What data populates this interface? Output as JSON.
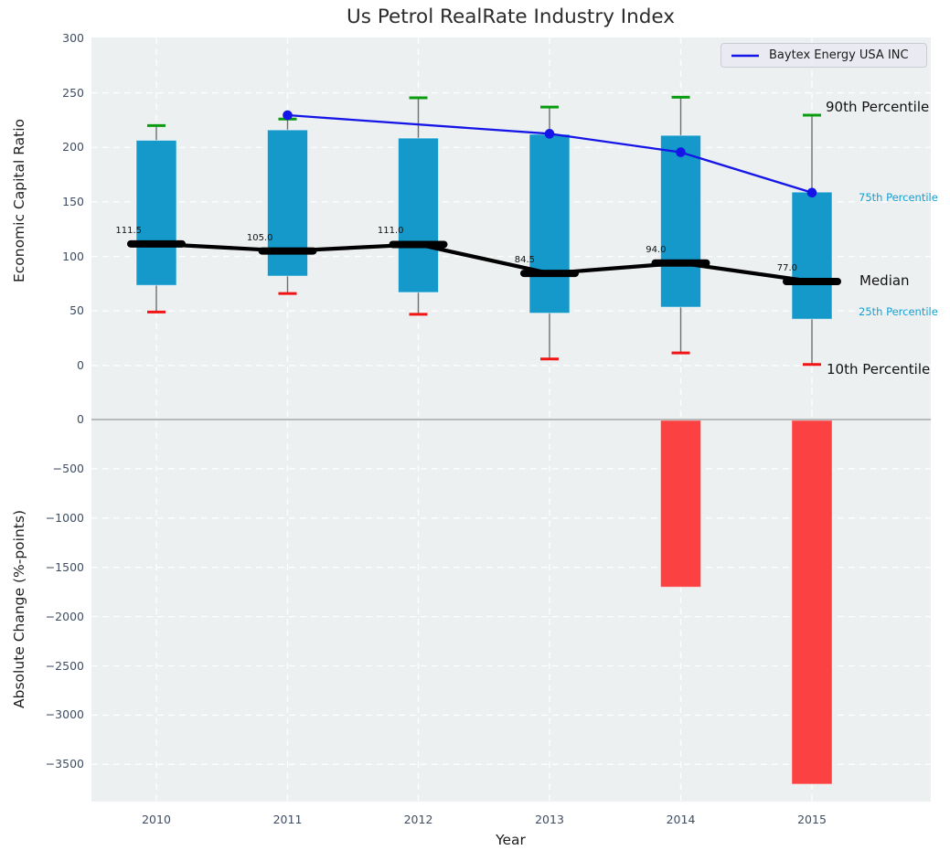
{
  "title": "Us Petrol RealRate Industry Index",
  "colors": {
    "box": "#1599cb",
    "p90_cap": "#0a9c0f",
    "p10_cap": "#f21414",
    "median": "#000000",
    "company_line": "#1515e8",
    "change_bar": "#fb4141",
    "percentile_text": "#169fd3",
    "plot_background": "#ecf0f1",
    "zero_line": "#a8a8a8"
  },
  "chart_data": [
    {
      "type": "box",
      "ylabel": "Economic Capital Ratio",
      "categories": [
        "2010",
        "2011",
        "2012",
        "2013",
        "2014",
        "2015"
      ],
      "yticks": [
        {
          "v": 0,
          "label": "0"
        },
        {
          "v": 50,
          "label": "50"
        },
        {
          "v": 100,
          "label": "100"
        },
        {
          "v": 150,
          "label": "150"
        },
        {
          "v": 200,
          "label": "200"
        },
        {
          "v": 250,
          "label": "250"
        },
        {
          "v": 300,
          "label": "300"
        }
      ],
      "ylim": [
        -39,
        301
      ],
      "grid": true,
      "boxes": [
        {
          "year": "2010",
          "p10": 49,
          "p25": 73.5,
          "median": 111.5,
          "p75": 206.5,
          "p90": 220
        },
        {
          "year": "2011",
          "p10": 66,
          "p25": 82,
          "median": 105.0,
          "p75": 216,
          "p90": 226
        },
        {
          "year": "2012",
          "p10": 47,
          "p25": 67,
          "median": 111.0,
          "p75": 208.5,
          "p90": 245.5
        },
        {
          "year": "2013",
          "p10": 6,
          "p25": 48,
          "median": 84.5,
          "p75": 212,
          "p90": 237
        },
        {
          "year": "2014",
          "p10": 11.5,
          "p25": 53.5,
          "median": 94.0,
          "p75": 211,
          "p90": 246
        },
        {
          "year": "2015",
          "p10": 1,
          "p25": 42.5,
          "median": 77.0,
          "p75": 159,
          "p90": 229.5
        }
      ],
      "median_labels": [
        "111.5",
        "105.0",
        "111.0",
        "84.5",
        "94.0",
        "77.0"
      ],
      "series": [
        {
          "name": "Baytex Energy USA INC",
          "x": [
            "2011",
            "2013",
            "2014",
            "2015"
          ],
          "values": [
            229.5,
            212.5,
            195.5,
            158.5
          ]
        }
      ],
      "annotations": [
        "90th Percentile",
        "75th Percentile",
        "Median",
        "25th Percentile",
        "10th Percentile"
      ],
      "legend_position": "upper right"
    },
    {
      "type": "bar",
      "ylabel": "Absolute Change (%-points)",
      "xlabel": "Year",
      "categories": [
        "2010",
        "2011",
        "2012",
        "2013",
        "2014",
        "2015"
      ],
      "values": [
        null,
        null,
        null,
        null,
        -1700,
        -3700
      ],
      "yticks": [
        {
          "v": 0,
          "label": "0"
        },
        {
          "v": -500,
          "label": "−500"
        },
        {
          "v": -1000,
          "label": "−1000"
        },
        {
          "v": -1500,
          "label": "−1500"
        },
        {
          "v": -2000,
          "label": "−2000"
        },
        {
          "v": -2500,
          "label": "−2500"
        },
        {
          "v": -3000,
          "label": "−3000"
        },
        {
          "v": -3500,
          "label": "−3500"
        }
      ],
      "ylim": [
        -3900,
        110
      ],
      "grid": true
    }
  ]
}
